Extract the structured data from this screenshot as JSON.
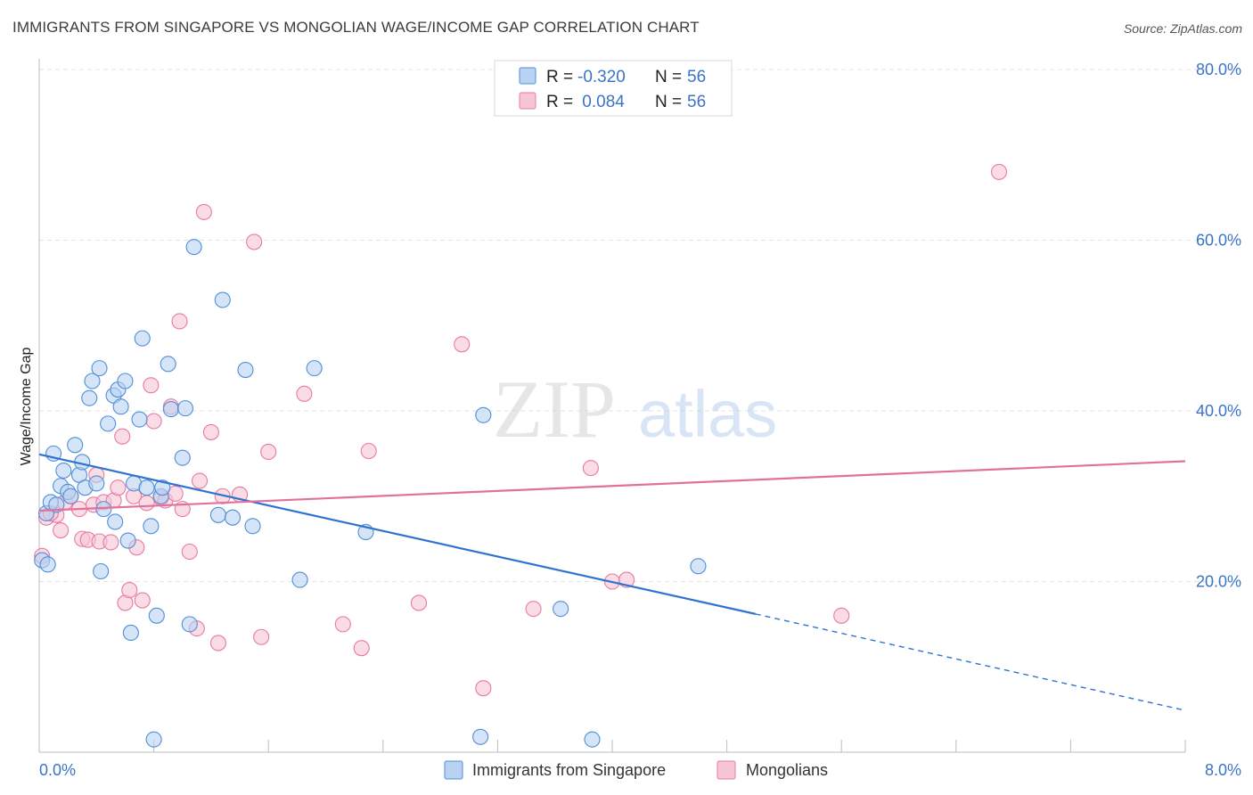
{
  "title": "IMMIGRANTS FROM SINGAPORE VS MONGOLIAN WAGE/INCOME GAP CORRELATION CHART",
  "source": "Source: ZipAtlas.com",
  "watermark": {
    "zip": "ZIP",
    "atlas": "atlas"
  },
  "colors": {
    "blue": "#4f8fd8",
    "blue_fill": "#b9d2f2",
    "blue_line": "#2f73d0",
    "pink": "#e87aa1",
    "pink_fill": "#f6c5d6",
    "pink_line": "#e0719a",
    "tick_text": "#3a74c9",
    "grid": "#e3e3e3"
  },
  "legend": {
    "rows": [
      {
        "r_label": "R =",
        "r_value": "-0.320",
        "n_label": "N =",
        "n_value": "56",
        "series": "blue"
      },
      {
        "r_label": "R =",
        "r_value": " 0.084",
        "n_label": "N =",
        "n_value": "56",
        "series": "pink"
      }
    ]
  },
  "bottom_legend": [
    {
      "label": "Immigrants from Singapore",
      "series": "blue"
    },
    {
      "label": "Mongolians",
      "series": "pink"
    }
  ],
  "chart_data": {
    "type": "scatter",
    "ylabel": "Wage/Income Gap",
    "xlim": [
      0,
      8
    ],
    "ylim": [
      0,
      80
    ],
    "x_tick_labels": [
      "0.0%",
      "8.0%"
    ],
    "y_ticks": [
      20,
      40,
      60,
      80
    ],
    "y_tick_labels": [
      "20.0%",
      "40.0%",
      "60.0%",
      "80.0%"
    ],
    "grid": true,
    "series": [
      {
        "name": "Immigrants from Singapore",
        "color": "blue",
        "trend": {
          "x": [
            0,
            5.0
          ],
          "y": [
            34.9,
            16.2
          ],
          "dashed_to": [
            8.0,
            4.9
          ]
        },
        "points": [
          [
            0.02,
            22.5
          ],
          [
            0.05,
            28.0
          ],
          [
            0.08,
            29.3
          ],
          [
            0.1,
            35.0
          ],
          [
            0.15,
            31.2
          ],
          [
            0.17,
            33.0
          ],
          [
            0.2,
            30.5
          ],
          [
            0.25,
            36.0
          ],
          [
            0.28,
            32.5
          ],
          [
            0.3,
            34.0
          ],
          [
            0.32,
            31.0
          ],
          [
            0.35,
            41.5
          ],
          [
            0.37,
            43.5
          ],
          [
            0.42,
            45.0
          ],
          [
            0.4,
            31.5
          ],
          [
            0.43,
            21.2
          ],
          [
            0.45,
            28.5
          ],
          [
            0.48,
            38.5
          ],
          [
            0.52,
            41.8
          ],
          [
            0.53,
            27.0
          ],
          [
            0.55,
            42.5
          ],
          [
            0.57,
            40.5
          ],
          [
            0.6,
            43.5
          ],
          [
            0.62,
            24.8
          ],
          [
            0.64,
            14.0
          ],
          [
            0.66,
            31.5
          ],
          [
            0.7,
            39.0
          ],
          [
            0.72,
            48.5
          ],
          [
            0.75,
            31.0
          ],
          [
            0.78,
            26.5
          ],
          [
            0.8,
            1.5
          ],
          [
            0.82,
            16.0
          ],
          [
            0.85,
            30.0
          ],
          [
            0.86,
            31.0
          ],
          [
            0.9,
            45.5
          ],
          [
            0.92,
            40.2
          ],
          [
            1.0,
            34.5
          ],
          [
            1.02,
            40.3
          ],
          [
            1.05,
            15.0
          ],
          [
            1.08,
            59.2
          ],
          [
            1.25,
            27.8
          ],
          [
            1.28,
            53.0
          ],
          [
            1.35,
            27.5
          ],
          [
            1.44,
            44.8
          ],
          [
            1.49,
            26.5
          ],
          [
            1.82,
            20.2
          ],
          [
            1.92,
            45.0
          ],
          [
            2.28,
            25.8
          ],
          [
            3.1,
            39.5
          ],
          [
            3.08,
            1.8
          ],
          [
            3.64,
            16.8
          ],
          [
            3.86,
            1.5
          ],
          [
            4.6,
            21.8
          ],
          [
            0.06,
            22.0
          ],
          [
            0.12,
            29.0
          ],
          [
            0.22,
            30.0
          ]
        ]
      },
      {
        "name": "Mongolians",
        "color": "pink",
        "trend": {
          "x": [
            0,
            8.0
          ],
          "y": [
            28.3,
            34.1
          ]
        },
        "points": [
          [
            0.02,
            23.0
          ],
          [
            0.05,
            27.5
          ],
          [
            0.12,
            27.8
          ],
          [
            0.18,
            29.3
          ],
          [
            0.22,
            30.0
          ],
          [
            0.28,
            28.5
          ],
          [
            0.3,
            25.0
          ],
          [
            0.34,
            24.9
          ],
          [
            0.38,
            29.0
          ],
          [
            0.4,
            32.5
          ],
          [
            0.42,
            24.7
          ],
          [
            0.45,
            29.3
          ],
          [
            0.5,
            24.6
          ],
          [
            0.52,
            29.5
          ],
          [
            0.55,
            31.0
          ],
          [
            0.58,
            37.0
          ],
          [
            0.6,
            17.5
          ],
          [
            0.63,
            19.0
          ],
          [
            0.66,
            30.0
          ],
          [
            0.68,
            24.0
          ],
          [
            0.72,
            17.8
          ],
          [
            0.75,
            29.2
          ],
          [
            0.78,
            43.0
          ],
          [
            0.8,
            38.8
          ],
          [
            0.85,
            29.8
          ],
          [
            0.88,
            29.5
          ],
          [
            0.92,
            40.5
          ],
          [
            0.95,
            30.3
          ],
          [
            0.98,
            50.5
          ],
          [
            1.0,
            28.5
          ],
          [
            1.05,
            23.5
          ],
          [
            1.1,
            14.5
          ],
          [
            1.12,
            31.8
          ],
          [
            1.15,
            63.3
          ],
          [
            1.2,
            37.5
          ],
          [
            1.25,
            12.8
          ],
          [
            1.28,
            30.0
          ],
          [
            1.4,
            30.2
          ],
          [
            1.5,
            59.8
          ],
          [
            1.55,
            13.5
          ],
          [
            1.6,
            35.2
          ],
          [
            1.85,
            42.0
          ],
          [
            2.12,
            15.0
          ],
          [
            2.25,
            12.2
          ],
          [
            2.3,
            35.3
          ],
          [
            2.65,
            17.5
          ],
          [
            2.95,
            47.8
          ],
          [
            3.1,
            7.5
          ],
          [
            3.45,
            16.8
          ],
          [
            3.85,
            33.3
          ],
          [
            4.0,
            20.0
          ],
          [
            4.1,
            20.2
          ],
          [
            5.6,
            16.0
          ],
          [
            6.7,
            68.0
          ],
          [
            0.08,
            28.0
          ],
          [
            0.15,
            26.0
          ]
        ]
      }
    ]
  }
}
